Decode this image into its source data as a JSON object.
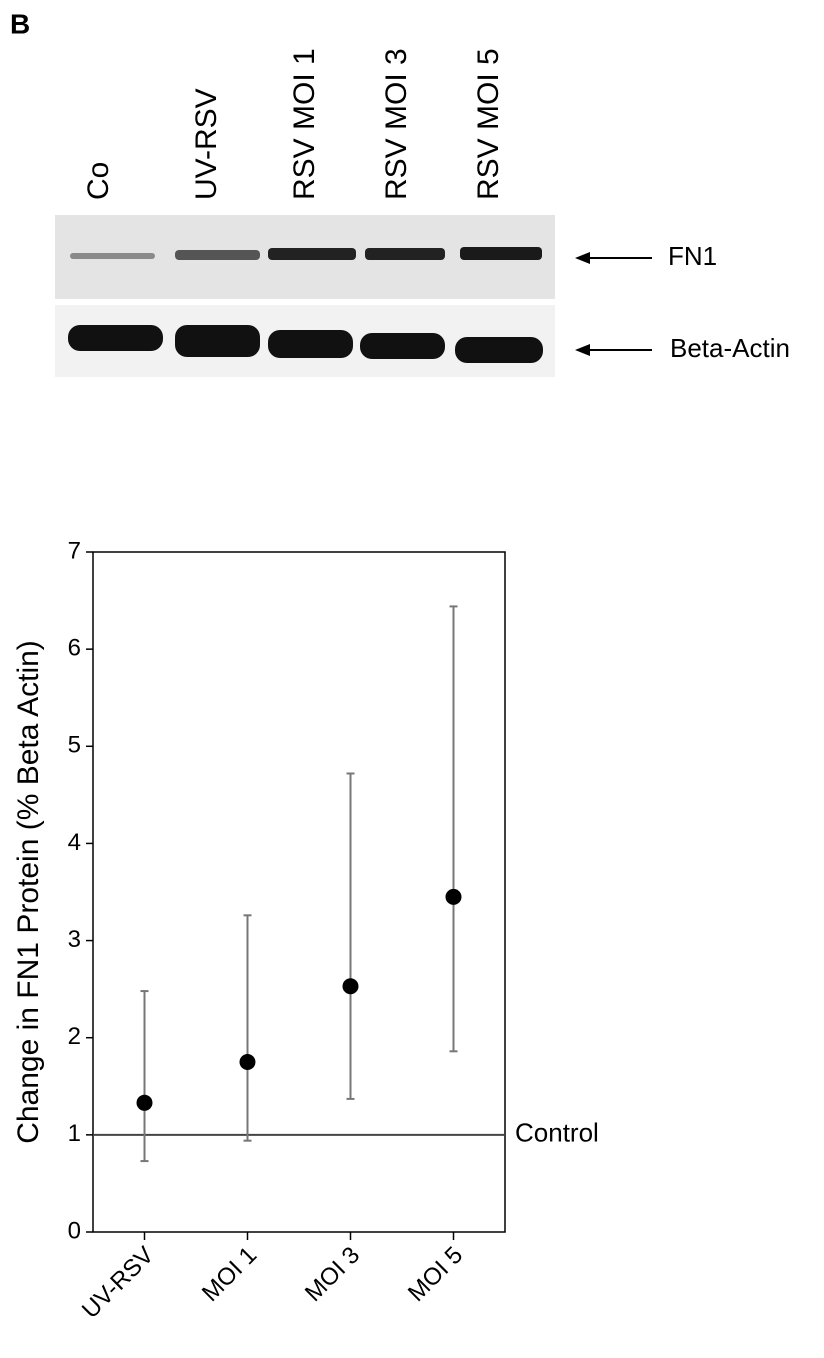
{
  "panel_label": "B",
  "blot": {
    "lanes": [
      "Co",
      "UV-RSV",
      "RSV MOI 1",
      "RSV MOI 3",
      "RSV MOI 5"
    ],
    "bands": [
      "FN1",
      "Beta-Actin"
    ]
  },
  "chart_data": {
    "type": "errorbar",
    "ylabel": "Change in FN1 Protein (% Beta Actin)",
    "categories": [
      "UV-RSV",
      "MOI 1",
      "MOI 3",
      "MOI 5"
    ],
    "series": [
      {
        "color": "#000000",
        "values": [
          1.33,
          1.75,
          2.53,
          3.45
        ],
        "lower": [
          0.73,
          0.94,
          1.37,
          1.86
        ],
        "upper": [
          2.48,
          3.26,
          4.72,
          6.44
        ]
      }
    ],
    "ylim": [
      0,
      7
    ],
    "yticks": [
      0,
      1,
      2,
      3,
      4,
      5,
      6,
      7
    ],
    "grid": false,
    "reference_line": {
      "value": 1,
      "label": "Control"
    }
  }
}
